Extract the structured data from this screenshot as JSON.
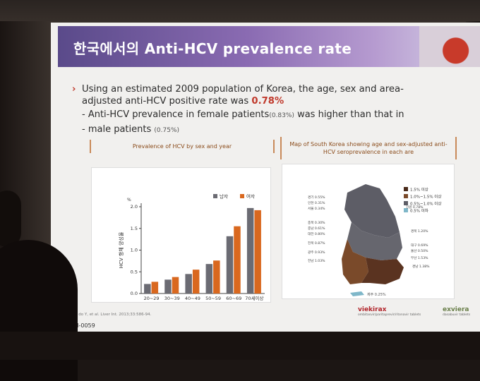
{
  "slide": {
    "title": "한국에서의 Anti-HCV prevalence rate",
    "bullet_main": "Using an estimated 2009 population of Korea, the age, sex and area-adjusted anti-HCV positive rate was",
    "bullet_value": "0.78%",
    "sub1_text": "Anti-HCV prevalence in female patients",
    "sub1_small": "(0.83%)",
    "sub1_rest": " was higher than that in",
    "sub2_text": "male patients",
    "sub2_small": "(0.75%)",
    "footer_ref": "1. Kim do Y, et al. Liver Int. 2013;33:586-94.",
    "footer_code": "V-CN-0059",
    "logo1": "viekirax",
    "logo1_sub": "ombitasvir/paritaprevir/ritonavir tablets",
    "logo2": "exviera",
    "logo2_sub": "dasabuvir tablets"
  },
  "left_panel_title": "Prevalence of HCV by sex and year",
  "right_panel_title": "Map of South Korea showing age and sex-adjusted anti-HCV seroprevalence in each are",
  "chart_data": {
    "type": "bar",
    "categories": [
      "20~29",
      "30~39",
      "40~49",
      "50~59",
      "60~69",
      "70세이상"
    ],
    "series": [
      {
        "name": "남자",
        "values": [
          0.22,
          0.32,
          0.45,
          0.68,
          1.32,
          1.97
        ],
        "color": "#6b6b73"
      },
      {
        "name": "여자",
        "values": [
          0.27,
          0.38,
          0.55,
          0.76,
          1.55,
          1.92
        ],
        "color": "#d9681f"
      }
    ],
    "ylabel": "HCV 항체 양성율",
    "yunit": "%",
    "xlabel": "연령군(세)",
    "ylim": [
      0,
      2.0
    ],
    "yticks": [
      "0.0",
      "0.5",
      "1.0",
      "1.5",
      "2.0"
    ],
    "legend": "top-right",
    "grid": false
  },
  "map": {
    "legend": [
      {
        "label": "1.5% 이상",
        "color": "#4a2a1a"
      },
      {
        "label": "1.0%~1.5% 이상",
        "color": "#7a4a2a"
      },
      {
        "label": "0.5%~1.0% 이상",
        "color": "#5d5d66"
      },
      {
        "label": "0.5% 이하",
        "color": "#7fb7c9"
      }
    ],
    "labels_left": [
      "경기 0.55%",
      "인천 0.31%",
      "서울 0.34%",
      "충북 0.30%",
      "충남 0.61%",
      "대전 0.80%",
      "전북 0.87%",
      "광주 0.93%",
      "전남 1.03%"
    ],
    "labels_right": [
      "강원 0.78%",
      "경북 1.20%",
      "대구 0.69%",
      "울산 0.50%",
      "부산 1.53%",
      "경남 1.38%"
    ],
    "jeju": "제주 0.25%"
  }
}
